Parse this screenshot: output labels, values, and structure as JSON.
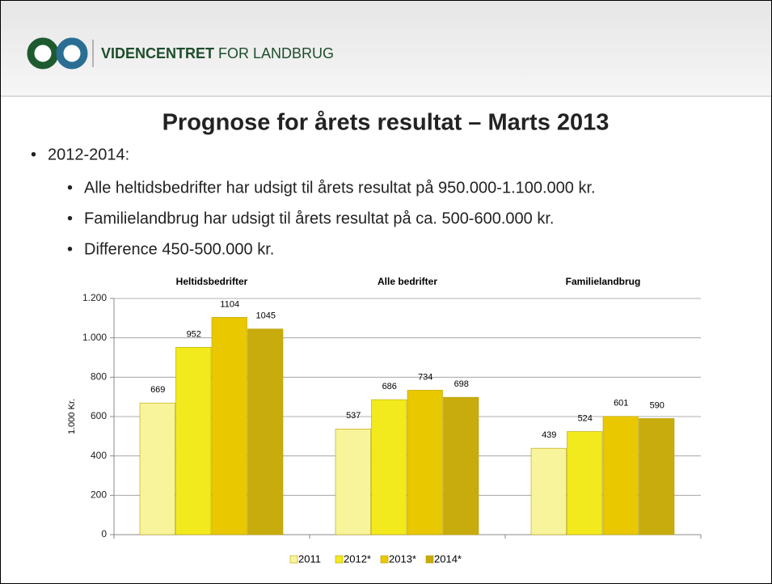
{
  "header": {
    "brand_bold": "VIDENCENTRET",
    "brand_rest": "FOR LANDBRUG"
  },
  "title": "Prognose for årets resultat – Marts 2013",
  "bullets": {
    "main": "2012-2014:",
    "sub": [
      "Alle heltidsbedrifter har udsigt til årets resultat på 950.000-1.100.000 kr.",
      "Familielandbrug har udsigt til årets resultat på ca. 500-600.000 kr.",
      "Difference 450-500.000 kr."
    ]
  },
  "chart_data": {
    "type": "bar",
    "categories": [
      "Heltidsbedrifter",
      "Alle bedrifter",
      "Familielandbrug"
    ],
    "series": [
      {
        "name": "2011",
        "color": "#f8f49c",
        "values": [
          669,
          537,
          439
        ]
      },
      {
        "name": "2012*",
        "color": "#f2ea1c",
        "values": [
          952,
          686,
          524
        ]
      },
      {
        "name": "2013*",
        "color": "#e9c800",
        "values": [
          1104,
          734,
          601
        ]
      },
      {
        "name": "2014*",
        "color": "#c8ab0c",
        "values": [
          1045,
          698,
          590
        ]
      }
    ],
    "ylabel": "1.000 Kr.",
    "ylim": [
      0,
      1200
    ],
    "yticks": [
      0,
      200,
      400,
      600,
      800,
      {
        "value": 1000,
        "label": "1.000"
      },
      {
        "value": 1200,
        "label": "1.200"
      }
    ],
    "grid": true,
    "legend": "bottom"
  }
}
